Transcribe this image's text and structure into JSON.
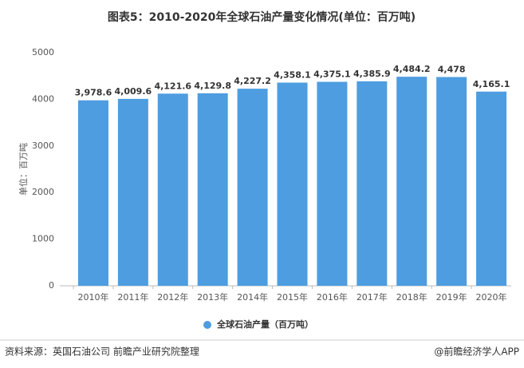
{
  "chart_data": {
    "type": "bar",
    "title": "图表5：2010-2020年全球石油产量变化情况(单位：百万吨)",
    "y_label": "单位：百万吨",
    "categories": [
      "2010年",
      "2011年",
      "2012年",
      "2013年",
      "2014年",
      "2015年",
      "2016年",
      "2017年",
      "2018年",
      "2019年",
      "2020年"
    ],
    "series": [
      {
        "name": "全球石油产量（百万吨）",
        "color": "#4e9de0",
        "values": [
          3978.6,
          4009.6,
          4121.6,
          4129.8,
          4227.2,
          4358.1,
          4375.1,
          4385.9,
          4484.2,
          4478,
          4165.1
        ],
        "value_labels": [
          "3,978.6",
          "4,009.6",
          "4,121.6",
          "4,129.8",
          "4,227.2",
          "4,358.1",
          "4,375.1",
          "4,385.9",
          "4,484.2",
          "4,478",
          "4,165.1"
        ]
      }
    ],
    "ylim": [
      0,
      5000
    ],
    "yticks": [
      0,
      1000,
      2000,
      3000,
      4000,
      5000
    ],
    "grid": false,
    "source": "资料来源：英国石油公司 前瞻产业研究院整理",
    "credit": "@前瞻经济学人APP"
  }
}
